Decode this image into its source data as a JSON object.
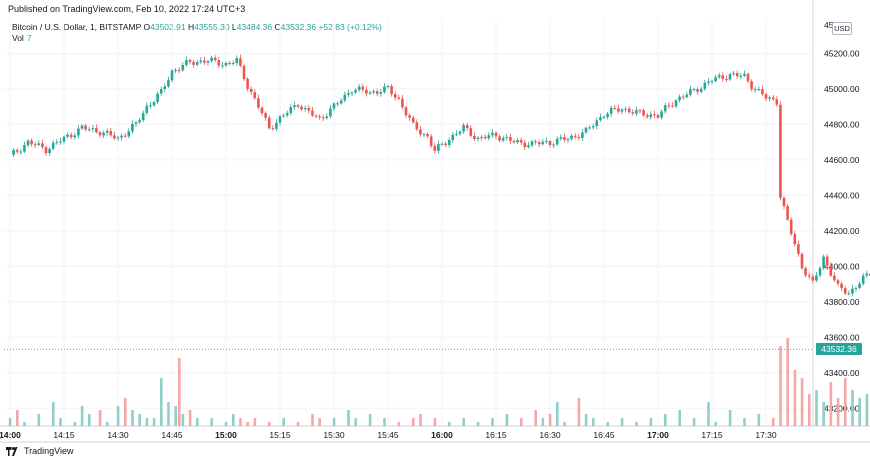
{
  "header": {
    "published": "Published on TradingView.com, Feb 10, 2022 17:24 UTC+3"
  },
  "legend": {
    "symbol": "Bitcoin / U.S. Dollar, 1, BITSTAMP",
    "o_label": "O",
    "o_value": "43502.91",
    "h_label": "H",
    "h_value": "43555.30",
    "l_label": "L",
    "l_value": "43484.36",
    "c_label": "C",
    "c_value": "43532.36",
    "change": "+52.83 (+0.12%)",
    "vol_label": "Vol",
    "vol_value": "7"
  },
  "currency_badge": "USD",
  "last_price_label": "43532.36",
  "footer": {
    "brand": "TradingView"
  },
  "colors": {
    "up": "#26a69a",
    "down": "#ef5350",
    "up_vol": "#8fcfc7",
    "down_vol": "#f4a7a5",
    "grid": "#f0f3fa"
  },
  "chart_data": {
    "type": "candlestick",
    "symbol": "Bitcoin / U.S. Dollar, 1, BITSTAMP",
    "interval_minutes": 1,
    "y_ticks": [
      43200,
      43400,
      43600,
      43800,
      44000,
      44200,
      44400,
      44600,
      44800,
      45000,
      45200
    ],
    "y_ticks_labels": [
      "43200.00",
      "43400.00",
      "43600.00",
      "43800.00",
      "44000.00",
      "44200.00",
      "44400.00",
      "44600.00",
      "44800.00",
      "45000.00",
      "45200.00"
    ],
    "ylim": [
      43100,
      45400
    ],
    "x_ticks": [
      "14:00",
      "14:15",
      "14:30",
      "14:45",
      "15:00",
      "15:15",
      "15:30",
      "15:45",
      "16:00",
      "16:15",
      "16:30",
      "16:45",
      "17:00",
      "17:15",
      "17:30"
    ],
    "x_ticks_bold": [
      "14:00",
      "15:00",
      "16:00",
      "17:00"
    ],
    "last_price": 43532.36,
    "close_path": [
      [
        0,
        44620
      ],
      [
        5,
        44700
      ],
      [
        10,
        44660
      ],
      [
        15,
        44720
      ],
      [
        20,
        44780
      ],
      [
        25,
        44760
      ],
      [
        30,
        44720
      ],
      [
        35,
        44800
      ],
      [
        38,
        44900
      ],
      [
        42,
        44980
      ],
      [
        45,
        45100
      ],
      [
        50,
        45150
      ],
      [
        55,
        45160
      ],
      [
        60,
        45140
      ],
      [
        63,
        45160
      ],
      [
        66,
        45020
      ],
      [
        70,
        44860
      ],
      [
        72,
        44780
      ],
      [
        76,
        44850
      ],
      [
        80,
        44920
      ],
      [
        82,
        44880
      ],
      [
        86,
        44830
      ],
      [
        90,
        44900
      ],
      [
        95,
        45000
      ],
      [
        100,
        44980
      ],
      [
        105,
        45000
      ],
      [
        108,
        44940
      ],
      [
        112,
        44790
      ],
      [
        116,
        44730
      ],
      [
        118,
        44650
      ],
      [
        122,
        44720
      ],
      [
        126,
        44780
      ],
      [
        130,
        44720
      ],
      [
        135,
        44740
      ],
      [
        140,
        44700
      ],
      [
        145,
        44690
      ],
      [
        150,
        44700
      ],
      [
        155,
        44720
      ],
      [
        160,
        44760
      ],
      [
        165,
        44860
      ],
      [
        170,
        44890
      ],
      [
        175,
        44860
      ],
      [
        180,
        44850
      ],
      [
        185,
        44940
      ],
      [
        190,
        44990
      ],
      [
        195,
        45050
      ],
      [
        200,
        45080
      ],
      [
        204,
        45070
      ],
      [
        207,
        45000
      ],
      [
        210,
        44950
      ],
      [
        213,
        44930
      ],
      [
        214,
        44400
      ],
      [
        216,
        44250
      ],
      [
        220,
        44000
      ],
      [
        223,
        43900
      ],
      [
        226,
        44050
      ],
      [
        230,
        43880
      ],
      [
        233,
        43850
      ],
      [
        237,
        43930
      ],
      [
        240,
        43970
      ],
      [
        243,
        43900
      ],
      [
        246,
        43800
      ],
      [
        250,
        43760
      ],
      [
        253,
        43580
      ],
      [
        255,
        43500
      ],
      [
        257,
        43380
      ],
      [
        260,
        43320
      ],
      [
        263,
        43360
      ],
      [
        266,
        43430
      ],
      [
        270,
        43450
      ],
      [
        274,
        43430
      ],
      [
        278,
        43460
      ],
      [
        282,
        43500
      ],
      [
        286,
        43532
      ]
    ],
    "volume": [
      [
        0,
        2
      ],
      [
        2,
        4
      ],
      [
        4,
        1
      ],
      [
        8,
        3
      ],
      [
        12,
        6
      ],
      [
        14,
        2
      ],
      [
        18,
        1
      ],
      [
        20,
        5
      ],
      [
        22,
        3
      ],
      [
        25,
        4
      ],
      [
        27,
        1
      ],
      [
        30,
        5
      ],
      [
        32,
        7
      ],
      [
        34,
        4
      ],
      [
        36,
        3
      ],
      [
        38,
        2
      ],
      [
        40,
        2
      ],
      [
        42,
        12
      ],
      [
        44,
        6
      ],
      [
        46,
        5
      ],
      [
        47,
        17
      ],
      [
        48,
        3
      ],
      [
        50,
        4
      ],
      [
        52,
        2
      ],
      [
        56,
        2
      ],
      [
        60,
        1
      ],
      [
        62,
        3
      ],
      [
        64,
        2
      ],
      [
        66,
        1
      ],
      [
        68,
        2
      ],
      [
        72,
        1
      ],
      [
        76,
        2
      ],
      [
        80,
        1
      ],
      [
        84,
        3
      ],
      [
        86,
        2
      ],
      [
        90,
        2
      ],
      [
        94,
        4
      ],
      [
        96,
        2
      ],
      [
        100,
        3
      ],
      [
        104,
        2
      ],
      [
        108,
        1
      ],
      [
        112,
        2
      ],
      [
        114,
        3
      ],
      [
        118,
        2
      ],
      [
        122,
        1
      ],
      [
        126,
        2
      ],
      [
        130,
        1
      ],
      [
        134,
        2
      ],
      [
        138,
        3
      ],
      [
        142,
        2
      ],
      [
        146,
        4
      ],
      [
        148,
        2
      ],
      [
        150,
        3
      ],
      [
        152,
        6
      ],
      [
        154,
        1
      ],
      [
        158,
        7
      ],
      [
        160,
        3
      ],
      [
        162,
        2
      ],
      [
        166,
        1
      ],
      [
        170,
        2
      ],
      [
        174,
        1
      ],
      [
        178,
        2
      ],
      [
        182,
        3
      ],
      [
        186,
        4
      ],
      [
        190,
        2
      ],
      [
        194,
        6
      ],
      [
        196,
        1
      ],
      [
        200,
        4
      ],
      [
        204,
        2
      ],
      [
        208,
        3
      ],
      [
        212,
        2
      ],
      [
        214,
        20
      ],
      [
        216,
        22
      ],
      [
        218,
        14
      ],
      [
        220,
        12
      ],
      [
        222,
        8
      ],
      [
        224,
        9
      ],
      [
        226,
        6
      ],
      [
        228,
        11
      ],
      [
        230,
        7
      ],
      [
        232,
        12
      ],
      [
        234,
        9
      ],
      [
        236,
        7
      ],
      [
        238,
        8
      ],
      [
        240,
        6
      ],
      [
        242,
        4
      ],
      [
        244,
        3
      ],
      [
        246,
        2
      ],
      [
        248,
        4
      ],
      [
        250,
        3
      ],
      [
        252,
        4
      ],
      [
        254,
        6
      ],
      [
        256,
        10
      ],
      [
        258,
        4
      ],
      [
        260,
        7
      ],
      [
        262,
        5
      ],
      [
        264,
        2
      ],
      [
        266,
        3
      ],
      [
        268,
        2
      ],
      [
        270,
        5
      ],
      [
        272,
        4
      ],
      [
        274,
        2
      ],
      [
        276,
        2
      ],
      [
        278,
        3
      ],
      [
        280,
        2
      ],
      [
        282,
        2
      ],
      [
        284,
        3
      ],
      [
        286,
        7
      ]
    ]
  }
}
